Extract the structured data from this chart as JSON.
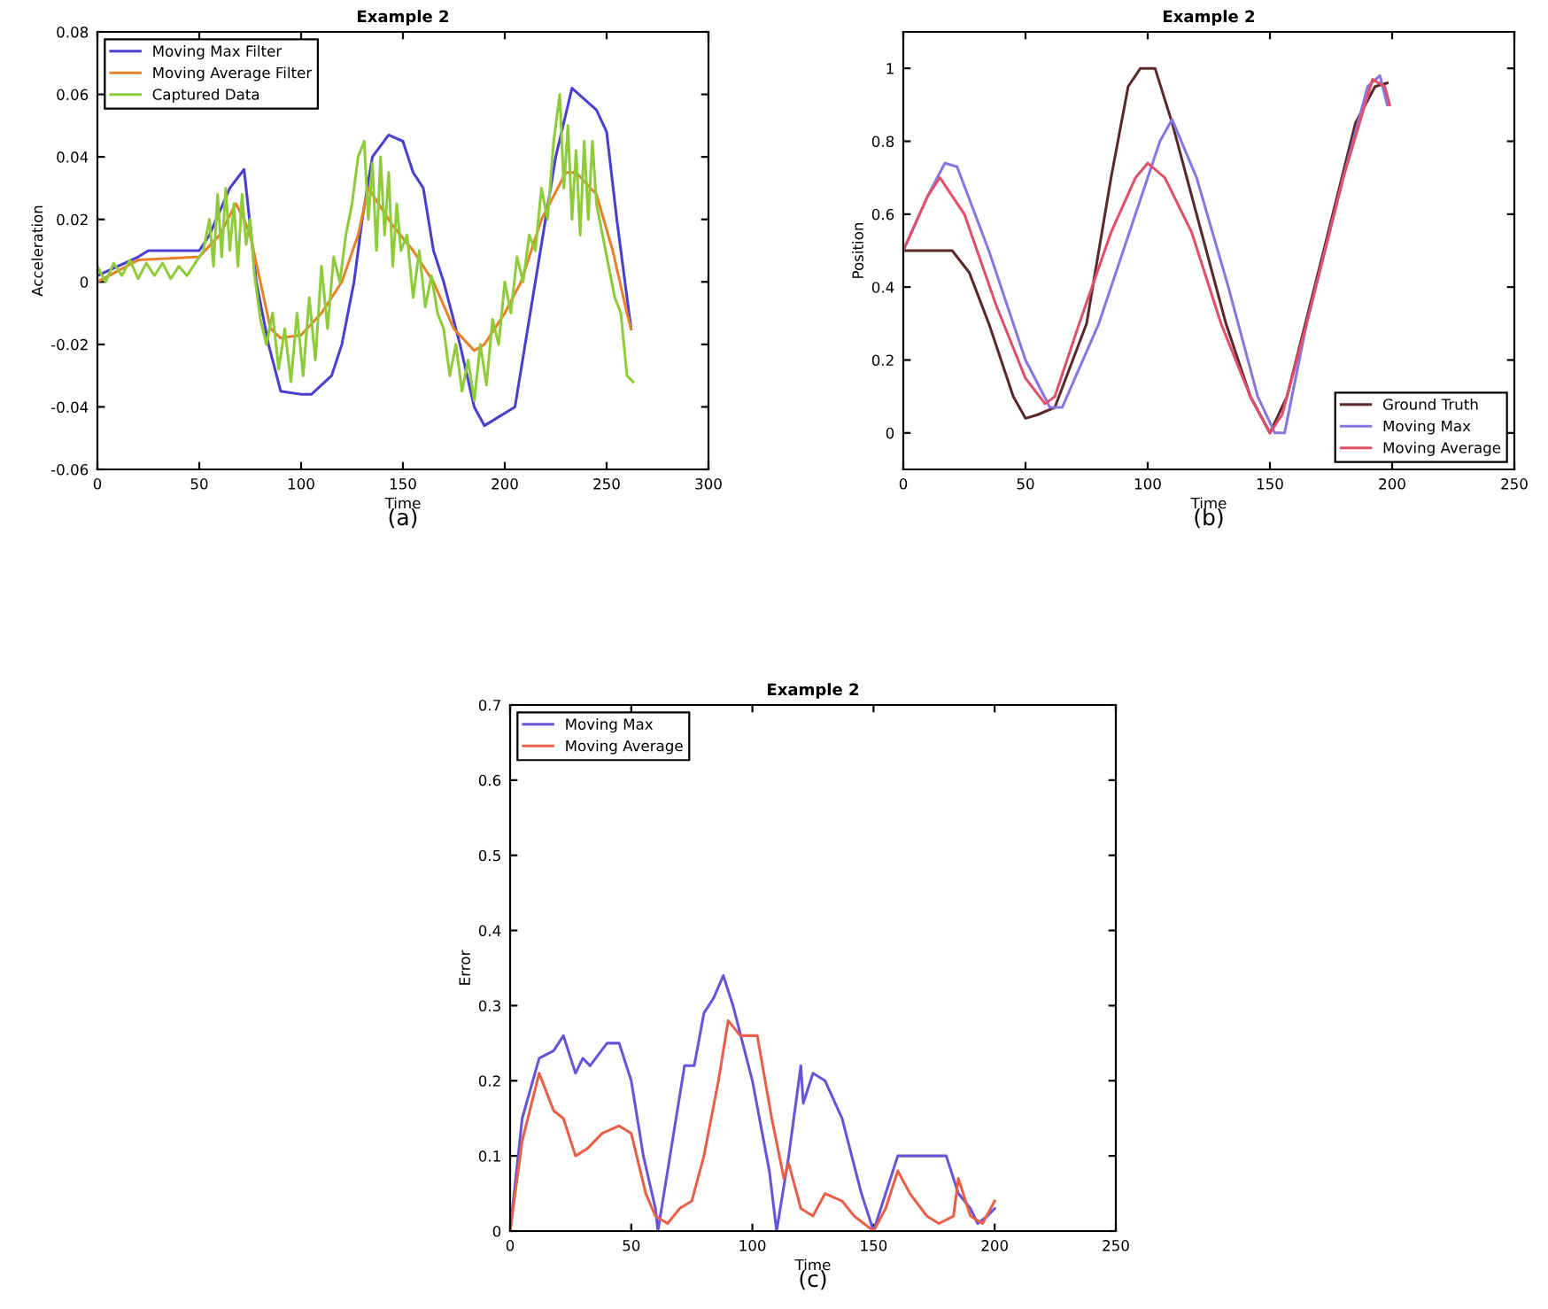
{
  "chart_data": [
    {
      "type": "line",
      "title": "Example 2",
      "xlabel": "Time",
      "ylabel": "Acceleration",
      "xlim": [
        0,
        300
      ],
      "xticks": [
        0,
        50,
        100,
        150,
        200,
        250,
        300
      ],
      "ylim": [
        -0.06,
        0.08
      ],
      "yticks": [
        -0.06,
        -0.04,
        -0.02,
        0,
        0.02,
        0.04,
        0.06,
        0.08
      ],
      "legend": "top left",
      "annotations": [
        "(a)"
      ],
      "series": [
        {
          "name": "Moving Max Filter",
          "color": "#4b3fd0",
          "x": [
            0,
            20,
            25,
            50,
            55,
            65,
            72,
            78,
            84,
            90,
            100,
            105,
            115,
            120,
            126,
            130,
            135,
            143,
            150,
            155,
            160,
            165,
            170,
            178,
            185,
            190,
            205,
            210,
            215,
            220,
            225,
            233,
            245,
            250,
            255,
            260,
            262
          ],
          "values": [
            0.002,
            0.008,
            0.01,
            0.01,
            0.015,
            0.03,
            0.036,
            0,
            -0.02,
            -0.035,
            -0.036,
            -0.036,
            -0.03,
            -0.02,
            0,
            0.02,
            0.04,
            0.047,
            0.045,
            0.035,
            0.03,
            0.01,
            0,
            -0.02,
            -0.04,
            -0.046,
            -0.04,
            -0.02,
            0,
            0.02,
            0.04,
            0.062,
            0.055,
            0.048,
            0.02,
            -0.005,
            -0.015
          ]
        },
        {
          "name": "Moving Average Filter",
          "color": "#e8822a",
          "x": [
            0,
            20,
            50,
            60,
            68,
            72,
            75,
            80,
            85,
            90,
            100,
            110,
            120,
            128,
            133,
            138,
            145,
            155,
            165,
            175,
            185,
            190,
            200,
            208,
            218,
            230,
            235,
            245,
            253,
            260,
            262
          ],
          "values": [
            0,
            0.007,
            0.008,
            0.015,
            0.025,
            0.02,
            0.015,
            0,
            -0.015,
            -0.018,
            -0.017,
            -0.01,
            0,
            0.015,
            0.03,
            0.025,
            0.018,
            0.01,
            0,
            -0.015,
            -0.022,
            -0.02,
            -0.01,
            0,
            0.02,
            0.035,
            0.035,
            0.028,
            0.01,
            -0.01,
            -0.015
          ]
        },
        {
          "name": "Captured Data",
          "color": "#8fcc3a",
          "x": [
            0,
            4,
            8,
            12,
            16,
            20,
            24,
            28,
            32,
            36,
            40,
            44,
            48,
            52,
            55,
            57,
            59,
            61,
            63,
            65,
            67,
            69,
            71,
            73,
            75,
            77,
            80,
            83,
            86,
            89,
            92,
            95,
            98,
            101,
            104,
            107,
            110,
            113,
            116,
            119,
            122,
            125,
            128,
            131,
            133,
            135,
            137,
            139,
            141,
            143,
            145,
            147,
            149,
            152,
            155,
            158,
            161,
            164,
            167,
            170,
            173,
            176,
            179,
            182,
            185,
            188,
            191,
            194,
            197,
            200,
            203,
            206,
            209,
            212,
            215,
            218,
            221,
            224,
            227,
            229,
            231,
            233,
            235,
            237,
            239,
            241,
            243,
            245,
            248,
            251,
            254,
            257,
            260,
            263
          ],
          "values": [
            0.005,
            0,
            0.006,
            0.002,
            0.007,
            0.001,
            0.006,
            0.002,
            0.006,
            0.001,
            0.005,
            0.002,
            0.006,
            0.01,
            0.02,
            0.005,
            0.028,
            0.008,
            0.03,
            0.01,
            0.025,
            0.005,
            0.028,
            0.012,
            0.02,
            0.003,
            -0.012,
            -0.02,
            -0.01,
            -0.028,
            -0.015,
            -0.032,
            -0.01,
            -0.03,
            -0.005,
            -0.025,
            0.005,
            -0.015,
            0.008,
            0.0,
            0.015,
            0.025,
            0.04,
            0.045,
            0.02,
            0.038,
            0.01,
            0.04,
            0.015,
            0.035,
            0.005,
            0.025,
            0.01,
            0.015,
            -0.005,
            0.01,
            -0.008,
            0.002,
            -0.01,
            -0.015,
            -0.03,
            -0.02,
            -0.035,
            -0.025,
            -0.038,
            -0.02,
            -0.033,
            -0.012,
            -0.02,
            0.0,
            -0.01,
            0.008,
            0.0,
            0.015,
            0.01,
            0.03,
            0.02,
            0.045,
            0.06,
            0.03,
            0.05,
            0.02,
            0.042,
            0.015,
            0.045,
            0.02,
            0.045,
            0.025,
            0.015,
            0.005,
            -0.005,
            -0.01,
            -0.03,
            -0.032
          ]
        }
      ]
    },
    {
      "type": "line",
      "title": "Example 2",
      "xlabel": "Time",
      "ylabel": "Position",
      "xlim": [
        0,
        250
      ],
      "xticks": [
        0,
        50,
        100,
        150,
        200,
        250
      ],
      "ylim": [
        -0.1,
        1.1
      ],
      "yticks": [
        0,
        0.2,
        0.4,
        0.6,
        0.8,
        1
      ],
      "legend": "bottom right",
      "annotations": [
        "(b)"
      ],
      "series": [
        {
          "name": "Ground Truth",
          "color": "#5a2a2a",
          "x": [
            0,
            20,
            27,
            35,
            45,
            50,
            55,
            62,
            75,
            85,
            92,
            97,
            103,
            110,
            120,
            132,
            142,
            150,
            157,
            172,
            185,
            193,
            198
          ],
          "values": [
            0.5,
            0.5,
            0.44,
            0.3,
            0.1,
            0.04,
            0.05,
            0.07,
            0.3,
            0.7,
            0.95,
            1.0,
            1.0,
            0.85,
            0.6,
            0.3,
            0.1,
            0,
            0.1,
            0.5,
            0.85,
            0.95,
            0.96
          ]
        },
        {
          "name": "Moving Max",
          "color": "#8877e0",
          "x": [
            0,
            10,
            17,
            22,
            35,
            50,
            60,
            65,
            80,
            95,
            105,
            110,
            120,
            133,
            145,
            152,
            156,
            165,
            180,
            190,
            195,
            198
          ],
          "values": [
            0.5,
            0.65,
            0.74,
            0.73,
            0.5,
            0.2,
            0.07,
            0.07,
            0.3,
            0.6,
            0.8,
            0.86,
            0.7,
            0.4,
            0.1,
            0,
            0,
            0.3,
            0.7,
            0.95,
            0.98,
            0.9
          ]
        },
        {
          "name": "Moving Average",
          "color": "#e0506a",
          "x": [
            0,
            10,
            15,
            25,
            38,
            50,
            58,
            62,
            72,
            85,
            95,
            100,
            107,
            118,
            130,
            142,
            150,
            155,
            165,
            180,
            192,
            197,
            199
          ],
          "values": [
            0.5,
            0.65,
            0.7,
            0.6,
            0.35,
            0.15,
            0.08,
            0.1,
            0.3,
            0.55,
            0.7,
            0.74,
            0.7,
            0.55,
            0.3,
            0.1,
            0,
            0.05,
            0.3,
            0.7,
            0.97,
            0.95,
            0.9
          ]
        }
      ]
    },
    {
      "type": "line",
      "title": "Example 2",
      "xlabel": "Time",
      "ylabel": "Error",
      "xlim": [
        0,
        250
      ],
      "xticks": [
        0,
        50,
        100,
        150,
        200,
        250
      ],
      "ylim": [
        0,
        0.7
      ],
      "yticks": [
        0,
        0.1,
        0.2,
        0.3,
        0.4,
        0.5,
        0.6,
        0.7
      ],
      "legend": "top left",
      "annotations": [
        "(c)"
      ],
      "series": [
        {
          "name": "Moving Max",
          "color": "#6655d8",
          "x": [
            0,
            5,
            12,
            18,
            22,
            27,
            30,
            33,
            40,
            45,
            50,
            55,
            60,
            61,
            66,
            72,
            76,
            80,
            84,
            88,
            92,
            100,
            107,
            110,
            115,
            120,
            121,
            125,
            130,
            137,
            145,
            150,
            155,
            160,
            170,
            180,
            185,
            190,
            193,
            197,
            200
          ],
          "values": [
            0,
            0.15,
            0.23,
            0.24,
            0.26,
            0.21,
            0.23,
            0.22,
            0.25,
            0.25,
            0.2,
            0.1,
            0.03,
            0,
            0.1,
            0.22,
            0.22,
            0.29,
            0.31,
            0.34,
            0.3,
            0.2,
            0.08,
            0,
            0.1,
            0.22,
            0.17,
            0.21,
            0.2,
            0.15,
            0.05,
            0,
            0.05,
            0.1,
            0.1,
            0.1,
            0.05,
            0.03,
            0.01,
            0.02,
            0.03
          ]
        },
        {
          "name": "Moving Average",
          "color": "#e8604a",
          "x": [
            0,
            5,
            12,
            18,
            22,
            27,
            32,
            38,
            45,
            50,
            56,
            60,
            65,
            70,
            75,
            80,
            86,
            90,
            95,
            102,
            108,
            113,
            115,
            120,
            125,
            130,
            137,
            142,
            150,
            155,
            160,
            165,
            172,
            177,
            183,
            185,
            190,
            195,
            200
          ],
          "values": [
            0,
            0.12,
            0.21,
            0.16,
            0.15,
            0.1,
            0.11,
            0.13,
            0.14,
            0.13,
            0.05,
            0.02,
            0.01,
            0.03,
            0.04,
            0.1,
            0.2,
            0.28,
            0.26,
            0.26,
            0.15,
            0.07,
            0.09,
            0.03,
            0.02,
            0.05,
            0.04,
            0.02,
            0,
            0.03,
            0.08,
            0.05,
            0.02,
            0.01,
            0.02,
            0.07,
            0.02,
            0.01,
            0.04
          ]
        }
      ]
    }
  ]
}
